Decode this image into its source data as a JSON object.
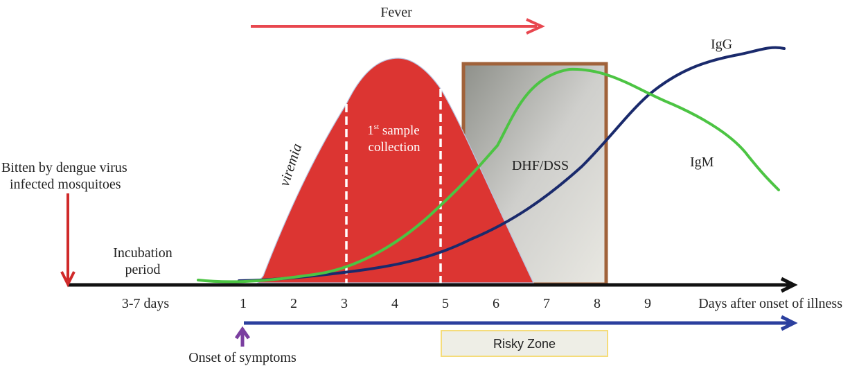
{
  "labels": {
    "fever": "Fever",
    "igg": "IgG",
    "igm": "IgM",
    "viremia": "viremia",
    "sample_prefix": "1",
    "sample_sup": "st",
    "sample_line1": " sample",
    "sample_line2": "collection",
    "dhf": "DHF/DSS",
    "bitten_line1": "Bitten by dengue virus",
    "bitten_line2": "infected mosquitoes",
    "incubation_line1": "Incubation",
    "incubation_line2": "period",
    "incubation_days": "3-7 days",
    "x_axis": "Days after onset of illness",
    "risky_zone": "Risky Zone",
    "onset": "Onset of symptoms"
  },
  "day_ticks": [
    "1",
    "2",
    "3",
    "4",
    "5",
    "6",
    "7",
    "8",
    "9"
  ],
  "colors": {
    "fever_arrow": "#e8474f",
    "viremia_fill": "#dc3532",
    "igg_line": "#1a2a6c",
    "igm_line": "#4cc443",
    "dhf_border": "#a0623a",
    "risky_fill": "#eeeee6",
    "risky_border": "#f5dc7a",
    "bitten_arrow": "#d02a2a",
    "onset_arrow": "#7b3fa0",
    "timeline_arrow": "#2b3f9e",
    "axis_arrow": "#111111"
  }
}
